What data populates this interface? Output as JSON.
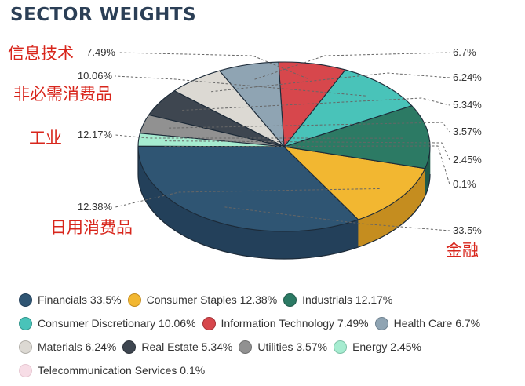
{
  "chart_data": {
    "type": "pie",
    "title": "SECTOR WEIGHTS",
    "series": [
      {
        "name": "Financials",
        "value": 33.5,
        "label": "33.5%",
        "legend": "Financials 33.5%",
        "cn": "金融",
        "color": "#2f5573",
        "side": "#23405a"
      },
      {
        "name": "Consumer Staples",
        "value": 12.38,
        "label": "12.38%",
        "legend": "Consumer Staples 12.38%",
        "cn": "日用消费品",
        "color": "#f2b731",
        "side": "#c58d1f"
      },
      {
        "name": "Industrials",
        "value": 12.17,
        "label": "12.17%",
        "legend": "Industrials 12.17%",
        "cn": "工业",
        "color": "#2c7a64",
        "side": "#1f5a4a"
      },
      {
        "name": "Consumer Discretionary",
        "value": 10.06,
        "label": "10.06%",
        "legend": "Consumer Discretionary 10.06%",
        "cn": "非必需消费品",
        "color": "#49c3b9",
        "side": "#35978e"
      },
      {
        "name": "Information Technology",
        "value": 7.49,
        "label": "7.49%",
        "legend": "Information Technology 7.49%",
        "cn": "信息技术",
        "color": "#d7474c",
        "side": "#a63438"
      },
      {
        "name": "Health Care",
        "value": 6.7,
        "label": "6.7%",
        "legend": "Health Care 6.7%",
        "color": "#8fa4b3",
        "side": "#6f8290"
      },
      {
        "name": "Materials",
        "value": 6.24,
        "label": "6.24%",
        "legend": "Materials 6.24%",
        "color": "#dcd9d3",
        "side": "#b3b0aa"
      },
      {
        "name": "Real Estate",
        "value": 5.34,
        "label": "5.34%",
        "legend": "Real Estate 5.34%",
        "color": "#3e4650",
        "side": "#2c323a"
      },
      {
        "name": "Utilities",
        "value": 3.57,
        "label": "3.57%",
        "legend": "Utilities 3.57%",
        "color": "#919191",
        "side": "#707070"
      },
      {
        "name": "Energy",
        "value": 2.45,
        "label": "2.45%",
        "legend": "Energy 2.45%",
        "color": "#a6ecd0",
        "side": "#7ec2a8"
      },
      {
        "name": "Telecommunication Services",
        "value": 0.1,
        "label": "0.1%",
        "legend": "Telecommunication Services 0.1%",
        "color": "#f7dde6",
        "side": "#d8b9c4"
      }
    ],
    "legend_position": "bottom"
  }
}
